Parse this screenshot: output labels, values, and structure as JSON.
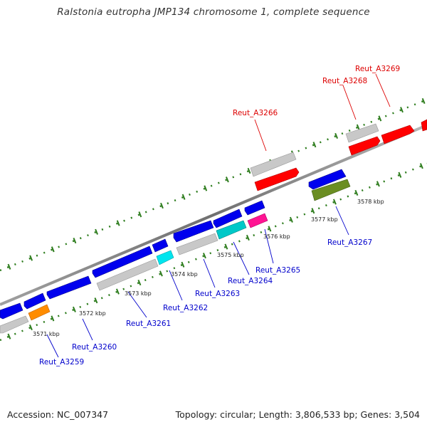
{
  "title": "Ralstonia eutropha JMP134 chromosome 1, complete sequence",
  "footer": {
    "accession": "Accession: NC_007347",
    "summary": "Topology: circular; Length: 3,806,533 bp; Genes: 3,504"
  },
  "colors": {
    "forward_label": "#dd0000",
    "reverse_label": "#0000cc",
    "backbone": "#808080",
    "tick": "#2e7d1e"
  },
  "scale_ticks": [
    "3571 kbp",
    "3572 kbp",
    "3573 kbp",
    "3574 kbp",
    "3575 kbp",
    "3576 kbp",
    "3577 kbp",
    "3578 kbp"
  ],
  "genes_forward": [
    {
      "label": "Reut_A3266",
      "color": "#ff0000"
    },
    {
      "label": "Reut_A3268",
      "color": "#ff0000"
    },
    {
      "label": "Reut_A3269",
      "color": "#ff0000"
    }
  ],
  "genes_reverse": [
    {
      "label": "Reut_A3259",
      "color": "#ff8c00"
    },
    {
      "label": "Reut_A3260",
      "color": "#0000ff"
    },
    {
      "label": "Reut_A3261",
      "color": "#0000ff"
    },
    {
      "label": "Reut_A3262",
      "color": "#00e5ee"
    },
    {
      "label": "Reut_A3263",
      "color": "#c0c0c0"
    },
    {
      "label": "Reut_A3264",
      "color": "#00c8c8"
    },
    {
      "label": "Reut_A3265",
      "color": "#ff1493"
    },
    {
      "label": "Reut_A3267",
      "color": "#6b8e23"
    }
  ]
}
